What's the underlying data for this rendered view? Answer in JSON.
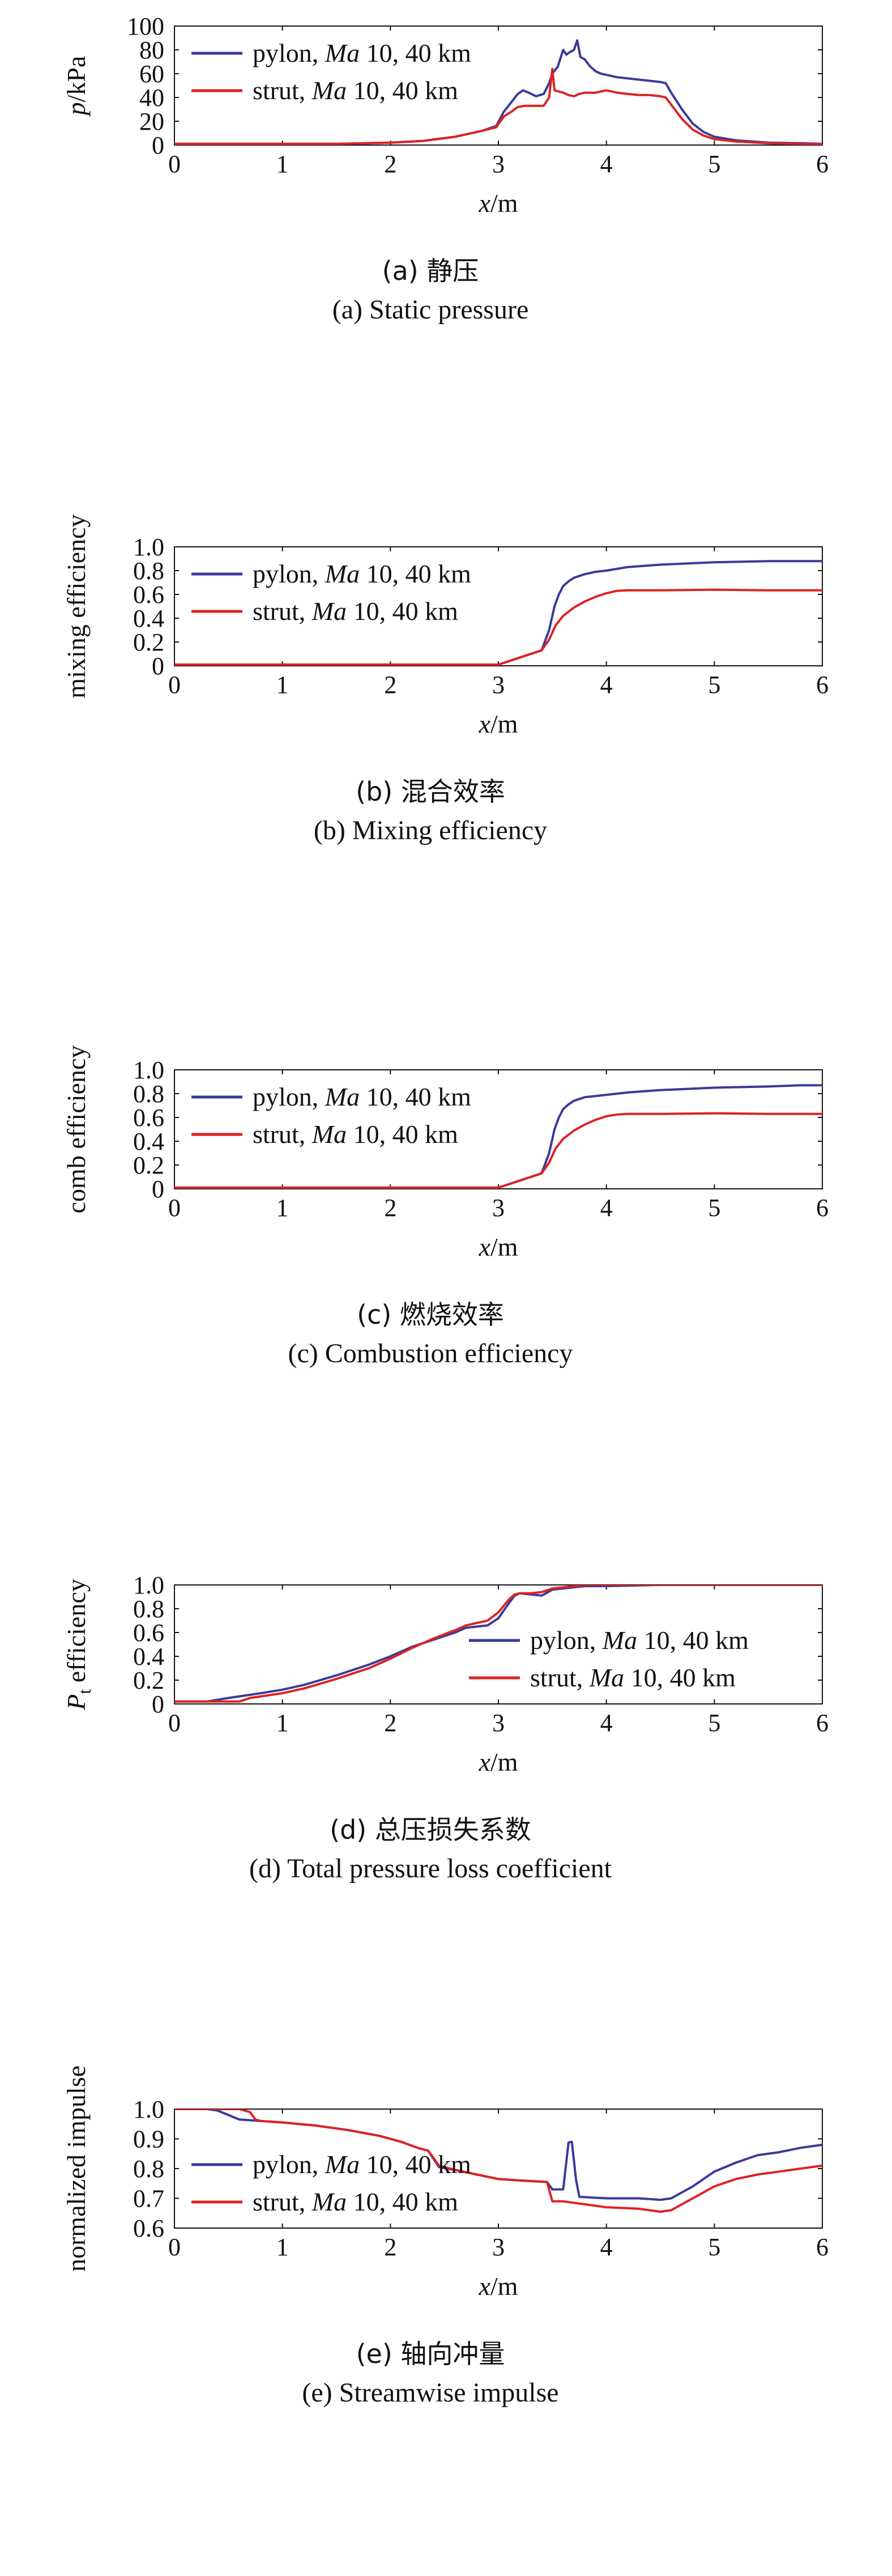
{
  "chart_data": [
    {
      "type": "line",
      "panel": "a",
      "caption_zh": "(a) 静压",
      "caption_en": "(a) Static pressure",
      "xlabel_main": "x",
      "xlabel_unit": "/m",
      "ylabel_main": "p",
      "ylabel_unit": "/kPa",
      "xlim": [
        0,
        6
      ],
      "ylim": [
        0,
        100
      ],
      "xticks": [
        "0",
        "1",
        "2",
        "3",
        "4",
        "5",
        "6"
      ],
      "yticks": [
        "0",
        "20",
        "40",
        "60",
        "80",
        "100"
      ],
      "legend_position": "top-left",
      "series": [
        {
          "name": "pylon, Ma 10, 40 km",
          "label_prefix": "pylon, ",
          "label_italic": "Ma",
          "label_suffix": " 10, 40 km",
          "color": "#3a3a9a",
          "x": [
            0,
            1,
            1.5,
            2,
            2.3,
            2.6,
            2.85,
            2.98,
            3.05,
            3.12,
            3.18,
            3.23,
            3.28,
            3.35,
            3.42,
            3.47,
            3.5,
            3.55,
            3.6,
            3.63,
            3.66,
            3.7,
            3.73,
            3.76,
            3.8,
            3.85,
            3.9,
            3.95,
            4.0,
            4.1,
            4.2,
            4.3,
            4.4,
            4.5,
            4.55,
            4.6,
            4.7,
            4.8,
            4.9,
            5.0,
            5.2,
            5.5,
            5.8,
            6.0
          ],
          "y": [
            1,
            1,
            1,
            2,
            3.5,
            7,
            12,
            16,
            28,
            36,
            43,
            46,
            44,
            41,
            43,
            52,
            60,
            66,
            80,
            76,
            78,
            80,
            88,
            74,
            72,
            66,
            62,
            60,
            59,
            57,
            56,
            55,
            54,
            53,
            52,
            44,
            30,
            18,
            11,
            7,
            4,
            2,
            1.5,
            1
          ]
        },
        {
          "name": "strut, Ma 10, 40 km",
          "label_prefix": "strut, ",
          "label_italic": "Ma",
          "label_suffix": " 10, 40 km",
          "color": "#dd2222",
          "x": [
            0,
            1,
            1.5,
            2,
            2.3,
            2.6,
            2.85,
            2.98,
            3.05,
            3.12,
            3.18,
            3.25,
            3.35,
            3.42,
            3.47,
            3.5,
            3.52,
            3.56,
            3.6,
            3.65,
            3.7,
            3.75,
            3.8,
            3.9,
            4.0,
            4.1,
            4.2,
            4.3,
            4.4,
            4.5,
            4.55,
            4.6,
            4.7,
            4.8,
            4.9,
            5.0,
            5.2,
            5.5,
            5.8,
            6.0
          ],
          "y": [
            1,
            1,
            1,
            2,
            3.5,
            7,
            12,
            15,
            24,
            28,
            32,
            33,
            33,
            33,
            40,
            64,
            46,
            45,
            44,
            42,
            41,
            43,
            44,
            44,
            46,
            44,
            43,
            42,
            42,
            41,
            40,
            34,
            22,
            13,
            8,
            5,
            3,
            1.5,
            1,
            0.8
          ]
        }
      ]
    },
    {
      "type": "line",
      "panel": "b",
      "caption_zh": "(b) 混合效率",
      "caption_en": "(b) Mixing efficiency",
      "xlabel_main": "x",
      "xlabel_unit": "/m",
      "ylabel_main": "mixing efficiency",
      "ylabel_unit": "",
      "xlim": [
        0,
        6
      ],
      "ylim": [
        0,
        1.0
      ],
      "xticks": [
        "0",
        "1",
        "2",
        "3",
        "4",
        "5",
        "6"
      ],
      "yticks": [
        "0",
        "0.2",
        "0.4",
        "0.6",
        "0.8",
        "1.0"
      ],
      "legend_position": "top-left",
      "series": [
        {
          "name": "pylon, Ma 10, 40 km",
          "label_prefix": "pylon, ",
          "label_italic": "Ma",
          "label_suffix": " 10, 40 km",
          "color": "#3a3a9a",
          "x": [
            0,
            3.0,
            3.1,
            3.2,
            3.3,
            3.4,
            3.47,
            3.52,
            3.56,
            3.6,
            3.65,
            3.7,
            3.8,
            3.9,
            4.0,
            4.2,
            4.5,
            5.0,
            5.5,
            5.8,
            6.0
          ],
          "y": [
            0.01,
            0.01,
            0.04,
            0.07,
            0.1,
            0.13,
            0.3,
            0.5,
            0.6,
            0.67,
            0.71,
            0.74,
            0.77,
            0.79,
            0.8,
            0.83,
            0.85,
            0.87,
            0.88,
            0.88,
            0.88
          ]
        },
        {
          "name": "strut, Ma 10, 40 km",
          "label_prefix": "strut, ",
          "label_italic": "Ma",
          "label_suffix": " 10, 40 km",
          "color": "#dd2222",
          "x": [
            0,
            3.0,
            3.1,
            3.2,
            3.3,
            3.4,
            3.47,
            3.53,
            3.6,
            3.7,
            3.8,
            3.9,
            4.0,
            4.1,
            4.2,
            4.5,
            5.0,
            5.5,
            6.0
          ],
          "y": [
            0.01,
            0.01,
            0.04,
            0.07,
            0.1,
            0.13,
            0.22,
            0.34,
            0.42,
            0.49,
            0.54,
            0.58,
            0.61,
            0.63,
            0.635,
            0.635,
            0.64,
            0.635,
            0.635
          ]
        }
      ]
    },
    {
      "type": "line",
      "panel": "c",
      "caption_zh": "(c) 燃烧效率",
      "caption_en": "(c) Combustion efficiency",
      "xlabel_main": "x",
      "xlabel_unit": "/m",
      "ylabel_main": "comb efficiency",
      "ylabel_unit": "",
      "xlim": [
        0,
        6
      ],
      "ylim": [
        0,
        1.0
      ],
      "xticks": [
        "0",
        "1",
        "2",
        "3",
        "4",
        "5",
        "6"
      ],
      "yticks": [
        "0",
        "0.2",
        "0.4",
        "0.6",
        "0.8",
        "1.0"
      ],
      "legend_position": "top-left",
      "series": [
        {
          "name": "pylon, Ma 10, 40 km",
          "label_prefix": "pylon, ",
          "label_italic": "Ma",
          "label_suffix": " 10, 40 km",
          "color": "#3a3a9a",
          "x": [
            0,
            3.0,
            3.1,
            3.2,
            3.3,
            3.4,
            3.47,
            3.52,
            3.56,
            3.6,
            3.65,
            3.7,
            3.8,
            3.9,
            4.0,
            4.2,
            4.5,
            5.0,
            5.5,
            5.8,
            6.0
          ],
          "y": [
            0.01,
            0.01,
            0.04,
            0.07,
            0.1,
            0.13,
            0.3,
            0.5,
            0.6,
            0.67,
            0.71,
            0.74,
            0.77,
            0.78,
            0.79,
            0.81,
            0.83,
            0.85,
            0.86,
            0.87,
            0.87
          ]
        },
        {
          "name": "strut, Ma 10, 40 km",
          "label_prefix": "strut, ",
          "label_italic": "Ma",
          "label_suffix": " 10, 40 km",
          "color": "#dd2222",
          "x": [
            0,
            3.0,
            3.1,
            3.2,
            3.3,
            3.4,
            3.47,
            3.53,
            3.6,
            3.7,
            3.8,
            3.9,
            4.0,
            4.1,
            4.2,
            4.5,
            5.0,
            5.5,
            6.0
          ],
          "y": [
            0.01,
            0.01,
            0.04,
            0.07,
            0.1,
            0.13,
            0.22,
            0.34,
            0.42,
            0.49,
            0.54,
            0.58,
            0.61,
            0.625,
            0.63,
            0.63,
            0.635,
            0.63,
            0.63
          ]
        }
      ]
    },
    {
      "type": "line",
      "panel": "d",
      "caption_zh": "(d) 总压损失系数",
      "caption_en": "(d) Total pressure loss coefficient",
      "xlabel_main": "x",
      "xlabel_unit": "/m",
      "ylabel_main": "P",
      "ylabel_sub": "t",
      "ylabel_unit": " efficiency",
      "xlim": [
        0,
        6
      ],
      "ylim": [
        0,
        1.0
      ],
      "xticks": [
        "0",
        "1",
        "2",
        "3",
        "4",
        "5",
        "6"
      ],
      "yticks": [
        "0",
        "0.2",
        "0.4",
        "0.6",
        "0.8",
        "1.0"
      ],
      "legend_position": "bottom-right",
      "series": [
        {
          "name": "pylon, Ma 10, 40 km",
          "label_prefix": "pylon, ",
          "label_italic": "Ma",
          "label_suffix": " 10, 40 km",
          "color": "#3a3a9a",
          "x": [
            0,
            0.3,
            0.5,
            0.8,
            1.0,
            1.2,
            1.5,
            1.8,
            2.0,
            2.2,
            2.4,
            2.6,
            2.7,
            2.8,
            2.9,
            3.0,
            3.1,
            3.15,
            3.2,
            3.3,
            3.4,
            3.5,
            3.6,
            3.7,
            3.8,
            4.0,
            4.5,
            5.0,
            6.0
          ],
          "y": [
            0.02,
            0.02,
            0.05,
            0.09,
            0.12,
            0.16,
            0.24,
            0.33,
            0.4,
            0.48,
            0.54,
            0.6,
            0.64,
            0.65,
            0.66,
            0.72,
            0.85,
            0.91,
            0.93,
            0.92,
            0.91,
            0.96,
            0.97,
            0.98,
            0.99,
            0.99,
            1.0,
            1.0,
            1.0
          ]
        },
        {
          "name": "strut, Ma 10, 40 km",
          "label_prefix": "strut, ",
          "label_italic": "Ma",
          "label_suffix": " 10, 40 km",
          "color": "#dd2222",
          "x": [
            0,
            0.3,
            0.6,
            0.7,
            1.0,
            1.2,
            1.5,
            1.8,
            2.0,
            2.2,
            2.4,
            2.6,
            2.7,
            2.8,
            2.9,
            3.0,
            3.1,
            3.15,
            3.2,
            3.3,
            3.4,
            3.5,
            3.6,
            3.7,
            3.8,
            4.0,
            4.5,
            5.0,
            6.0
          ],
          "y": [
            0.02,
            0.02,
            0.02,
            0.05,
            0.09,
            0.13,
            0.21,
            0.3,
            0.38,
            0.47,
            0.55,
            0.62,
            0.66,
            0.68,
            0.7,
            0.77,
            0.88,
            0.92,
            0.93,
            0.93,
            0.94,
            0.97,
            0.98,
            0.99,
            1.0,
            1.0,
            1.0,
            1.0,
            1.0
          ]
        }
      ]
    },
    {
      "type": "line",
      "panel": "e",
      "caption_zh": "(e) 轴向冲量",
      "caption_en": "(e) Streamwise impulse",
      "xlabel_main": "x",
      "xlabel_unit": "/m",
      "ylabel_main": "normalized impulse",
      "ylabel_unit": "",
      "xlim": [
        0,
        6
      ],
      "ylim": [
        0.6,
        1.0
      ],
      "xticks": [
        "0",
        "1",
        "2",
        "3",
        "4",
        "5",
        "6"
      ],
      "yticks": [
        "0.6",
        "0.7",
        "0.8",
        "0.9",
        "1.0"
      ],
      "legend_position": "bottom-left",
      "series": [
        {
          "name": "pylon, Ma 10, 40 km",
          "label_prefix": "pylon, ",
          "label_italic": "Ma",
          "label_suffix": " 10, 40 km",
          "color": "#3a3a9a",
          "x": [
            0,
            0.3,
            0.4,
            0.5,
            0.6,
            0.8,
            1.0,
            1.3,
            1.6,
            1.9,
            2.1,
            2.25,
            2.35,
            2.45,
            2.6,
            2.8,
            3.0,
            3.2,
            3.45,
            3.5,
            3.6,
            3.65,
            3.68,
            3.72,
            3.75,
            4.0,
            4.3,
            4.5,
            4.6,
            4.8,
            5.0,
            5.2,
            5.4,
            5.6,
            5.8,
            5.9,
            6.0
          ],
          "y": [
            1.0,
            1.0,
            0.995,
            0.98,
            0.965,
            0.96,
            0.955,
            0.945,
            0.93,
            0.91,
            0.89,
            0.87,
            0.86,
            0.805,
            0.795,
            0.78,
            0.765,
            0.76,
            0.755,
            0.73,
            0.73,
            0.888,
            0.89,
            0.76,
            0.705,
            0.7,
            0.7,
            0.695,
            0.7,
            0.74,
            0.79,
            0.82,
            0.845,
            0.855,
            0.87,
            0.875,
            0.88
          ]
        },
        {
          "name": "strut, Ma 10, 40 km",
          "label_prefix": "strut, ",
          "label_italic": "Ma",
          "label_suffix": " 10, 40 km",
          "color": "#dd2222",
          "x": [
            0,
            0.6,
            0.7,
            0.75,
            0.8,
            1.0,
            1.3,
            1.6,
            1.9,
            2.1,
            2.25,
            2.35,
            2.45,
            2.6,
            2.8,
            3.0,
            3.2,
            3.45,
            3.5,
            3.6,
            3.8,
            4.0,
            4.3,
            4.5,
            4.6,
            4.8,
            5.0,
            5.2,
            5.4,
            5.6,
            5.8,
            5.9,
            6.0
          ],
          "y": [
            1.0,
            1.0,
            0.99,
            0.965,
            0.96,
            0.955,
            0.945,
            0.93,
            0.91,
            0.89,
            0.87,
            0.86,
            0.81,
            0.795,
            0.78,
            0.765,
            0.76,
            0.755,
            0.69,
            0.69,
            0.68,
            0.67,
            0.665,
            0.655,
            0.66,
            0.7,
            0.74,
            0.765,
            0.78,
            0.79,
            0.8,
            0.805,
            0.81
          ]
        }
      ]
    }
  ]
}
